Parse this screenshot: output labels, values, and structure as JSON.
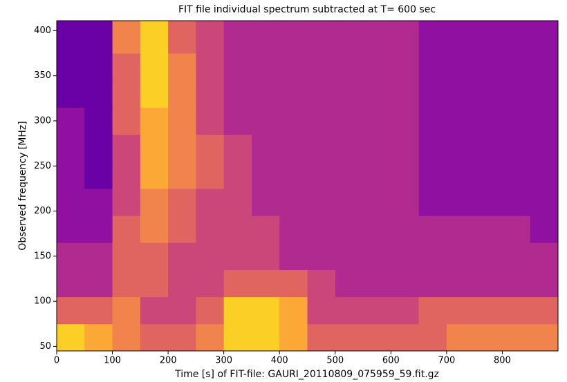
{
  "chart_data": {
    "type": "heatmap",
    "title": "FIT file individual spectrum subtracted at T=  600 sec",
    "x_label": "Time [s] of FIT-file: GAURI_20110809_075959_59.fit.gz",
    "y_label": "Observed frequency [MHz]",
    "xlim": [
      0,
      900
    ],
    "ylim": [
      45,
      411
    ],
    "xticks": [
      0,
      100,
      200,
      300,
      400,
      500,
      600,
      700,
      800
    ],
    "yticks": [
      50,
      100,
      150,
      200,
      250,
      300,
      350,
      400
    ],
    "colormap": "plasma",
    "zlim": [
      0,
      10
    ],
    "x_edges": [
      0,
      50,
      100,
      150,
      200,
      250,
      300,
      350,
      400,
      450,
      500,
      550,
      600,
      650,
      700,
      750,
      800,
      850,
      900
    ],
    "y_edges": [
      45,
      75,
      105,
      135,
      165,
      195,
      225,
      255,
      285,
      315,
      345,
      375,
      411
    ],
    "z": [
      [
        9,
        8,
        7,
        6,
        6,
        7,
        9,
        9,
        8,
        6,
        6,
        6,
        6,
        6,
        7,
        7,
        7,
        7
      ],
      [
        6,
        6,
        7,
        5,
        5,
        6,
        9,
        9,
        8,
        5,
        5,
        5,
        5,
        6,
        6,
        6,
        6,
        6
      ],
      [
        4,
        4,
        6,
        6,
        5,
        5,
        6,
        6,
        6,
        5,
        4,
        4,
        4,
        4,
        4,
        4,
        4,
        4
      ],
      [
        4,
        4,
        6,
        6,
        5,
        5,
        5,
        5,
        4,
        4,
        4,
        4,
        4,
        4,
        4,
        4,
        4,
        4
      ],
      [
        3,
        3,
        6,
        7,
        6,
        5,
        5,
        5,
        4,
        4,
        4,
        4,
        4,
        4,
        4,
        4,
        4,
        3
      ],
      [
        3,
        3,
        5,
        7,
        6,
        5,
        5,
        4,
        4,
        4,
        4,
        4,
        4,
        3,
        3,
        3,
        3,
        3
      ],
      [
        3,
        2,
        5,
        8,
        7,
        6,
        5,
        4,
        4,
        4,
        4,
        4,
        4,
        3,
        3,
        3,
        3,
        3
      ],
      [
        3,
        2,
        5,
        8,
        7,
        6,
        5,
        4,
        4,
        4,
        4,
        4,
        4,
        3,
        3,
        3,
        3,
        3
      ],
      [
        3,
        2,
        6,
        8,
        7,
        5,
        4,
        4,
        4,
        4,
        4,
        4,
        4,
        3,
        3,
        3,
        3,
        3
      ],
      [
        2,
        2,
        6,
        9,
        7,
        5,
        4,
        4,
        4,
        4,
        4,
        4,
        4,
        3,
        3,
        3,
        3,
        3
      ],
      [
        2,
        2,
        6,
        9,
        7,
        5,
        4,
        4,
        4,
        4,
        4,
        4,
        4,
        3,
        3,
        3,
        3,
        3
      ],
      [
        2,
        2,
        7,
        9,
        6,
        5,
        4,
        4,
        4,
        4,
        4,
        4,
        4,
        3,
        3,
        3,
        3,
        3
      ]
    ]
  }
}
